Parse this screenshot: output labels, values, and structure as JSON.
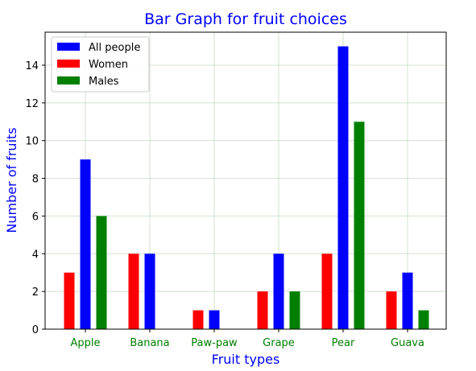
{
  "chart_data": {
    "type": "bar",
    "title": "Bar Graph for fruit choices",
    "xlabel": "Fruit types",
    "ylabel": "Number of fruits",
    "categories": [
      "Apple",
      "Banana",
      "Paw-paw",
      "Grape",
      "Pear",
      "Guava"
    ],
    "series": [
      {
        "name": "All people",
        "color": "#0000ff",
        "values": [
          9,
          4,
          1,
          4,
          15,
          3
        ]
      },
      {
        "name": "Women",
        "color": "#ff0000",
        "values": [
          3,
          4,
          1,
          2,
          4,
          2
        ]
      },
      {
        "name": "Males",
        "color": "#008000",
        "values": [
          6,
          0,
          0,
          2,
          11,
          1
        ]
      }
    ],
    "ylim": [
      0,
      15.75
    ],
    "yticks": [
      "0",
      "2",
      "4",
      "6",
      "8",
      "10",
      "12",
      "14"
    ],
    "grid": true,
    "legend_position": "top-left",
    "title_color": "#0000ff",
    "axis_label_color": "#0000ff",
    "category_label_color": "#008000"
  }
}
